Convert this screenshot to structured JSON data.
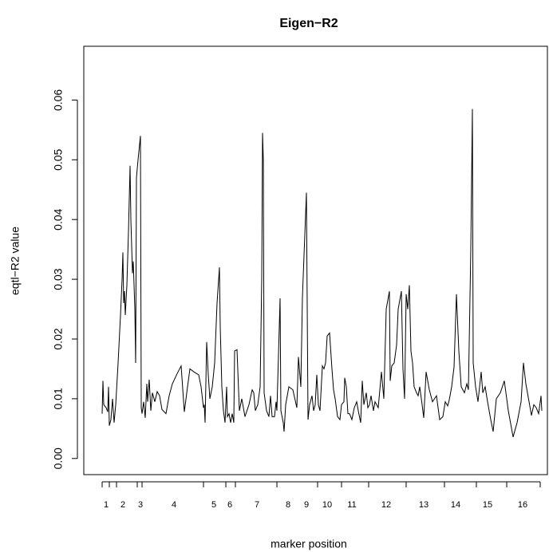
{
  "chart_data": {
    "type": "line",
    "title": "Eigen−R2",
    "xlabel": "marker position",
    "ylabel": "eqtl−R2 value",
    "color": "#000000",
    "xlim": [
      105,
      686
    ],
    "ylim": [
      -0.0027,
      0.069
    ],
    "yticks": [
      {
        "value": 0,
        "label": "0.00"
      },
      0.01,
      0.02,
      0.03,
      0.04,
      0.05,
      0.06
    ],
    "xticks": [
      {
        "value": 133,
        "label": "1"
      },
      {
        "value": 154,
        "label": "2"
      },
      {
        "value": 176,
        "label": "3"
      },
      {
        "value": 218,
        "label": "4"
      },
      {
        "value": 268,
        "label": "5"
      },
      {
        "value": 288,
        "label": "6"
      },
      {
        "value": 322,
        "label": "7"
      },
      {
        "value": 361,
        "label": "8"
      },
      {
        "value": 384,
        "label": "9"
      },
      {
        "value": 410,
        "label": "10"
      },
      {
        "value": 441,
        "label": "11"
      },
      {
        "value": 484,
        "label": "12"
      },
      {
        "value": 531,
        "label": "13"
      },
      {
        "value": 571,
        "label": "14"
      },
      {
        "value": 611,
        "label": "15"
      },
      {
        "value": 655,
        "label": "16"
      }
    ],
    "xbreaks": [
      128,
      137,
      146,
      172,
      178,
      255,
      283,
      295,
      347,
      398,
      428,
      462,
      509,
      557,
      597,
      635,
      677
    ],
    "x": [
      128,
      129,
      130,
      133,
      135,
      136,
      137,
      139,
      141,
      143,
      145,
      148,
      151,
      153,
      154,
      155,
      156,
      157,
      159,
      161,
      163,
      164,
      166,
      167,
      169,
      170,
      171,
      173,
      176,
      177,
      178,
      180,
      182,
      184,
      185,
      187,
      189,
      191,
      194,
      197,
      200,
      203,
      208,
      212,
      216,
      222,
      227,
      231,
      235,
      238,
      243,
      249,
      252,
      255,
      256,
      257,
      259,
      261,
      263,
      266,
      269,
      272,
      275,
      276,
      278,
      280,
      282,
      284,
      285,
      287,
      289,
      291,
      293,
      294,
      297,
      300,
      303,
      307,
      312,
      316,
      318,
      320,
      323,
      326,
      328,
      329,
      330,
      331,
      334,
      337,
      339,
      341,
      344,
      346,
      347,
      351,
      352,
      355,
      356,
      358,
      362,
      367,
      372,
      374,
      377,
      379,
      384,
      386,
      388,
      391,
      393,
      395,
      397,
      399,
      401,
      404,
      406,
      408,
      410,
      413,
      416,
      418,
      420,
      423,
      426,
      428,
      431,
      432,
      434,
      436,
      438,
      441,
      444,
      447,
      449,
      452,
      454,
      456,
      459,
      461,
      463,
      465,
      468,
      470,
      474,
      478,
      481,
      484,
      488,
      489,
      491,
      494,
      497,
      499,
      501,
      503,
      505,
      507,
      509,
      511,
      513,
      515,
      517,
      519,
      522,
      524,
      526,
      529,
      531,
      534,
      538,
      542,
      547,
      551,
      555,
      558,
      561,
      563,
      566,
      569,
      572,
      575,
      578,
      582,
      585,
      587,
      590,
      592,
      593,
      596,
      599,
      603,
      605,
      608,
      611,
      615,
      618,
      622,
      627,
      632,
      637,
      643,
      648,
      653,
      656,
      659,
      663,
      666,
      669,
      672,
      675,
      677,
      678,
      679
    ],
    "values": [
      0.0075,
      0.013,
      0.009,
      0.0085,
      0.0078,
      0.012,
      0.0055,
      0.0065,
      0.01,
      0.006,
      0.009,
      0.016,
      0.024,
      0.03,
      0.0345,
      0.026,
      0.028,
      0.024,
      0.029,
      0.038,
      0.049,
      0.04,
      0.031,
      0.033,
      0.025,
      0.016,
      0.047,
      0.05,
      0.054,
      0.0085,
      0.0075,
      0.0095,
      0.0068,
      0.0125,
      0.0095,
      0.0132,
      0.008,
      0.011,
      0.0095,
      0.0112,
      0.0105,
      0.0082,
      0.0075,
      0.0105,
      0.0125,
      0.0142,
      0.0155,
      0.0078,
      0.012,
      0.015,
      0.0145,
      0.014,
      0.012,
      0.0085,
      0.009,
      0.006,
      0.0195,
      0.014,
      0.01,
      0.012,
      0.016,
      0.026,
      0.032,
      0.022,
      0.012,
      0.008,
      0.006,
      0.012,
      0.007,
      0.0075,
      0.006,
      0.0075,
      0.006,
      0.018,
      0.0182,
      0.008,
      0.01,
      0.007,
      0.009,
      0.0115,
      0.011,
      0.008,
      0.009,
      0.012,
      0.03,
      0.0545,
      0.05,
      0.011,
      0.008,
      0.007,
      0.0105,
      0.007,
      0.007,
      0.0095,
      0.008,
      0.0268,
      0.008,
      0.006,
      0.0045,
      0.009,
      0.012,
      0.0115,
      0.0085,
      0.017,
      0.012,
      0.027,
      0.0445,
      0.0065,
      0.009,
      0.0105,
      0.008,
      0.009,
      0.014,
      0.009,
      0.008,
      0.0155,
      0.015,
      0.016,
      0.0205,
      0.021,
      0.015,
      0.0115,
      0.01,
      0.007,
      0.0065,
      0.009,
      0.0095,
      0.0135,
      0.012,
      0.0075,
      0.0075,
      0.0065,
      0.0085,
      0.0095,
      0.008,
      0.006,
      0.013,
      0.009,
      0.011,
      0.0085,
      0.009,
      0.0105,
      0.008,
      0.0095,
      0.0085,
      0.0145,
      0.01,
      0.025,
      0.028,
      0.013,
      0.0155,
      0.016,
      0.019,
      0.025,
      0.0265,
      0.028,
      0.015,
      0.01,
      0.0275,
      0.025,
      0.029,
      0.018,
      0.016,
      0.012,
      0.011,
      0.0105,
      0.012,
      0.009,
      0.0068,
      0.0145,
      0.0115,
      0.0095,
      0.0105,
      0.0065,
      0.007,
      0.0095,
      0.0088,
      0.0098,
      0.012,
      0.0153,
      0.0275,
      0.018,
      0.012,
      0.011,
      0.0125,
      0.0115,
      0.035,
      0.0585,
      0.016,
      0.012,
      0.0095,
      0.0145,
      0.011,
      0.012,
      0.0095,
      0.0065,
      0.0045,
      0.01,
      0.011,
      0.013,
      0.008,
      0.0036,
      0.006,
      0.0095,
      0.016,
      0.0125,
      0.0095,
      0.0072,
      0.009,
      0.0085,
      0.0075,
      0.0095,
      0.0105,
      0.008
    ]
  }
}
